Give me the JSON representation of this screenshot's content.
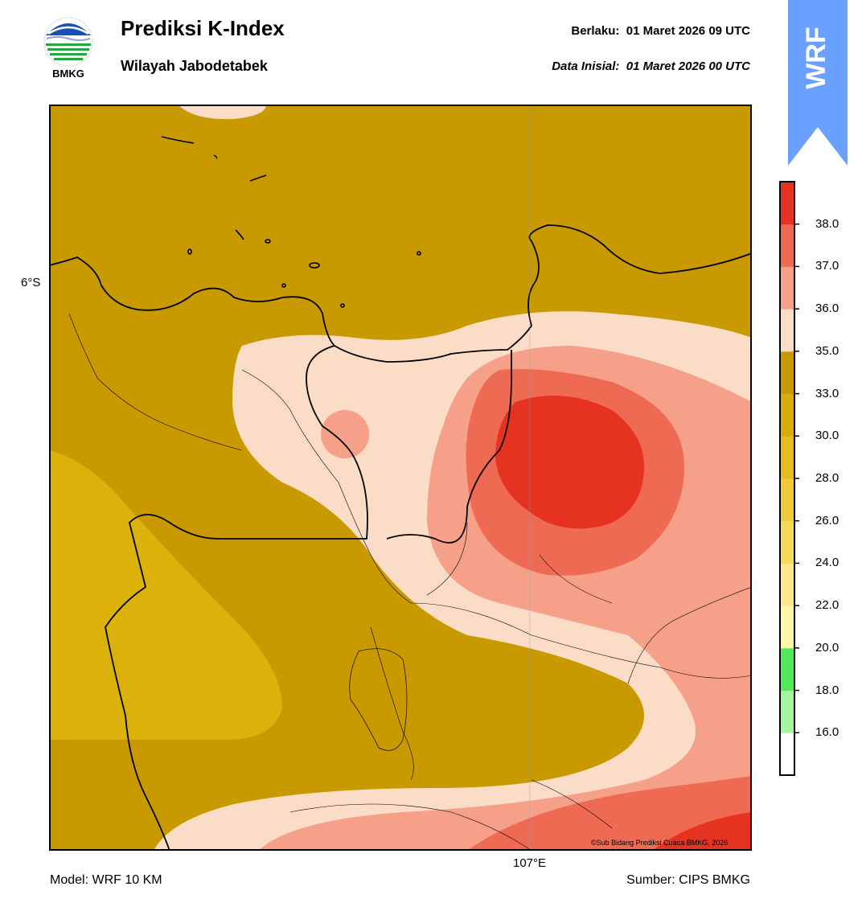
{
  "header": {
    "logo_text": "BMKG",
    "title": "Prediksi K-Index",
    "subtitle": "Wilayah Jabodetabek",
    "valid_label": "Berlaku:",
    "valid_time": "01 Maret 2026 09 UTC",
    "init_label": "Data Inisial:",
    "init_time": "01 Maret 2026 00 UTC",
    "badge_text": "WRF"
  },
  "map": {
    "lat_label": "6°S",
    "lon_label": "107°E",
    "copyright": "©Sub Bidang Prediksi Cuaca BMKG, 2026"
  },
  "footer": {
    "model": "Model: WRF 10 KM",
    "source": "Sumber: CIPS BMKG"
  },
  "colorbar": {
    "tick_labels": [
      "38.0",
      "37.0",
      "36.0",
      "35.0",
      "33.0",
      "30.0",
      "28.0",
      "26.0",
      "24.0",
      "22.0",
      "20.0",
      "18.0",
      "16.0"
    ],
    "colors": [
      "#ffffff",
      "#a6f5a0",
      "#52e85a",
      "#fff6a8",
      "#fde98c",
      "#f7da5a",
      "#efcb3a",
      "#e6bb1c",
      "#d9ac0c",
      "#c89a00",
      "#fbdcc6",
      "#f6a08a",
      "#ee6a52",
      "#e63221"
    ]
  },
  "colors": {
    "kindex_33_35": "#c89a00",
    "kindex_30_33": "#dbb10a",
    "kindex_35_36": "#fbdcc6",
    "kindex_36_37": "#f6a08a",
    "kindex_37_38": "#ee6a52",
    "kindex_38_plus": "#e63221",
    "badge": "#6aa0ff"
  }
}
